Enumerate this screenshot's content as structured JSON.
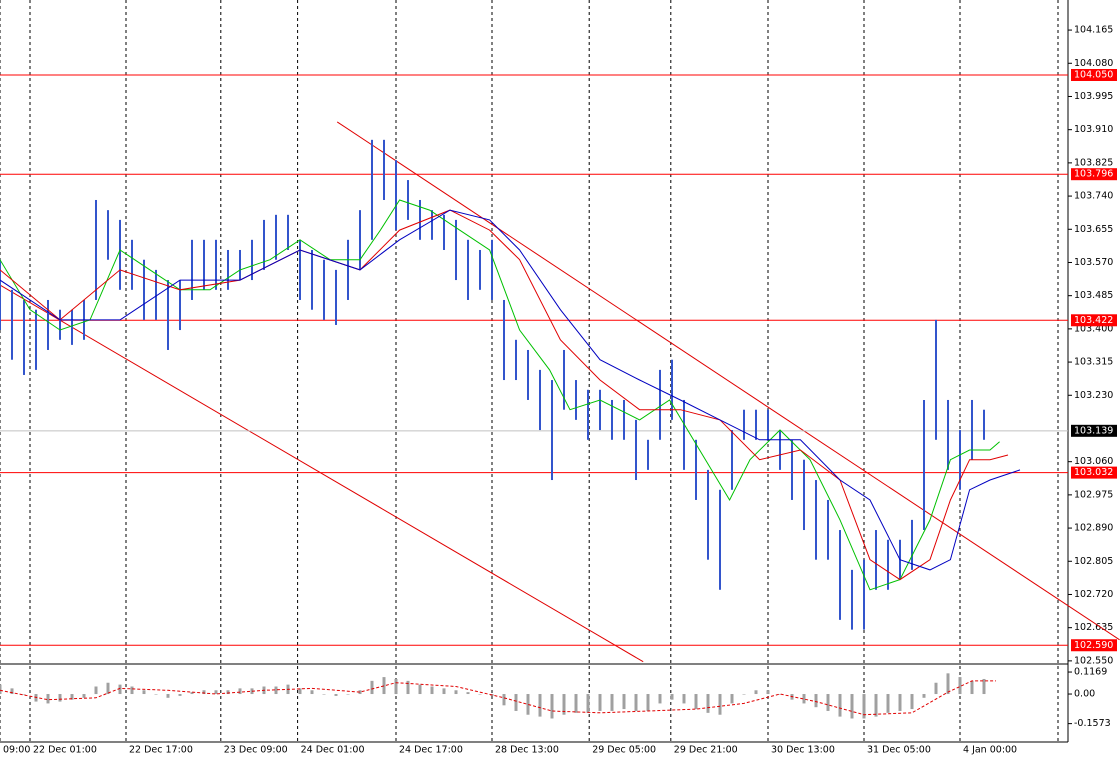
{
  "chart_data": [
    {
      "type": "hilo",
      "color": "#3355cc",
      "high": [
        103.577,
        103.5,
        103.474,
        103.449,
        103.474,
        103.449,
        103.449,
        103.474,
        103.73,
        103.704,
        103.679,
        103.628,
        103.577,
        103.551,
        103.525,
        103.525,
        103.628,
        103.628,
        103.628,
        103.602,
        103.602,
        103.628,
        103.679,
        103.692,
        103.692,
        103.628,
        103.602,
        103.577,
        103.551,
        103.628,
        103.704,
        103.884,
        103.884,
        103.832,
        103.781,
        103.73,
        103.704,
        103.692,
        103.679,
        103.628,
        103.602,
        103.628,
        103.474,
        103.372,
        103.346,
        103.295,
        103.269,
        103.346,
        103.269,
        103.244,
        103.244,
        103.218,
        103.218,
        103.167,
        103.116,
        103.295,
        103.321,
        103.218,
        103.116,
        103.039,
        102.988,
        103.141,
        103.193,
        103.193,
        103.193,
        103.141,
        103.116,
        103.065,
        103.013,
        102.962,
        102.885,
        102.783,
        102.809,
        102.885,
        102.86,
        102.86,
        102.911,
        103.218,
        103.423,
        103.218,
        103.141,
        103.218,
        103.193
      ],
      "low": [
        103.397,
        103.321,
        103.282,
        103.295,
        103.346,
        103.372,
        103.359,
        103.372,
        103.474,
        103.577,
        103.5,
        103.5,
        103.423,
        103.423,
        103.346,
        103.397,
        103.474,
        103.5,
        103.5,
        103.5,
        103.525,
        103.525,
        103.551,
        103.577,
        103.602,
        103.474,
        103.449,
        103.423,
        103.41,
        103.474,
        103.551,
        103.628,
        103.73,
        103.653,
        103.679,
        103.628,
        103.628,
        103.602,
        103.525,
        103.474,
        103.5,
        103.474,
        103.269,
        103.269,
        103.218,
        103.141,
        103.013,
        103.193,
        103.167,
        103.116,
        103.141,
        103.116,
        103.116,
        103.013,
        103.039,
        103.116,
        103.167,
        103.039,
        102.962,
        102.809,
        102.732,
        102.988,
        103.116,
        103.116,
        103.116,
        103.039,
        102.962,
        102.885,
        102.809,
        102.809,
        102.655,
        102.63,
        102.63,
        102.732,
        102.732,
        102.758,
        102.783,
        102.885,
        103.116,
        103.039,
        102.988,
        103.065,
        103.116
      ],
      "lines": [
        {
          "color": "#00c000",
          "x": [
            0,
            2.5,
            5,
            7.5,
            10,
            12.5,
            15,
            17.5,
            20,
            22.5,
            25,
            27.5,
            30,
            31.7,
            33.3,
            35.8,
            38.3,
            40.8,
            43.3,
            45.8,
            47.5,
            50,
            53.3,
            55.8,
            58.3,
            60.8,
            62.5,
            65,
            67.5,
            70,
            72.5,
            75,
            77.5,
            79.2,
            80.8,
            82.5,
            83.3
          ],
          "values": [
            103.577,
            103.449,
            103.397,
            103.423,
            103.602,
            103.551,
            103.5,
            103.5,
            103.551,
            103.577,
            103.628,
            103.577,
            103.577,
            103.653,
            103.73,
            103.704,
            103.653,
            103.602,
            103.397,
            103.295,
            103.193,
            103.218,
            103.167,
            103.218,
            103.09,
            102.962,
            103.065,
            103.141,
            103.065,
            102.911,
            102.732,
            102.758,
            102.911,
            103.065,
            103.09,
            103.09,
            103.111
          ]
        },
        {
          "color": "#e00000",
          "x": [
            0,
            5,
            10,
            15,
            20,
            25,
            30,
            33.3,
            37.5,
            40.8,
            43.3,
            46.7,
            50,
            53.3,
            56.7,
            60,
            63.3,
            66.7,
            70,
            72.5,
            75,
            77.5,
            79.2,
            80.8,
            82.5,
            84
          ],
          "values": [
            103.551,
            103.423,
            103.551,
            103.5,
            103.525,
            103.602,
            103.551,
            103.653,
            103.704,
            103.653,
            103.577,
            103.372,
            103.269,
            103.193,
            103.193,
            103.167,
            103.065,
            103.09,
            103.013,
            102.809,
            102.758,
            102.809,
            102.962,
            103.065,
            103.065,
            103.077
          ]
        },
        {
          "color": "#0000c0",
          "x": [
            0,
            5,
            10,
            15,
            20,
            25,
            30,
            33.3,
            37.5,
            40.8,
            43.3,
            46.7,
            50,
            53.3,
            56.7,
            60,
            63.3,
            66.7,
            70,
            72.5,
            75,
            77.5,
            79.2,
            80.8,
            82.5,
            85
          ],
          "values": [
            103.525,
            103.423,
            103.423,
            103.525,
            103.525,
            103.602,
            103.551,
            103.628,
            103.704,
            103.679,
            103.602,
            103.449,
            103.321,
            103.269,
            103.218,
            103.167,
            103.116,
            103.116,
            103.013,
            102.962,
            102.809,
            102.783,
            102.809,
            102.988,
            103.013,
            103.039
          ]
        }
      ],
      "trendlines": [
        {
          "color": "#e00000",
          "x": [
            28.1,
            93.3
          ],
          "values": [
            103.93,
            102.604
          ]
        },
        {
          "color": "#e00000",
          "x": [
            0,
            53.6
          ],
          "values": [
            103.512,
            102.548
          ]
        }
      ],
      "levels": {
        "color": "#ff0000",
        "values": [
          104.05,
          103.796,
          103.422,
          103.032,
          102.59
        ],
        "value_labels": [
          "104.050",
          "103.796",
          "103.422",
          "103.032",
          "102.590"
        ]
      },
      "current": {
        "value": 103.139,
        "color": "#c0c0c0"
      },
      "xlim": [
        0,
        89
      ],
      "xticks": [
        {
          "value": 0,
          "label": "09:00"
        },
        {
          "value": 2.5,
          "label": "22 Dec 01:00"
        },
        {
          "value": 10.5,
          "label": "22 Dec 17:00"
        },
        {
          "value": 18.4,
          "label": "23 Dec 09:00"
        },
        {
          "value": 24.8,
          "label": "24 Dec 01:00"
        },
        {
          "value": 33,
          "label": "24 Dec 17:00"
        },
        {
          "value": 41,
          "label": "28 Dec 13:00"
        },
        {
          "value": 49.1,
          "label": "29 Dec 05:00"
        },
        {
          "value": 55.9,
          "label": "29 Dec 21:00"
        },
        {
          "value": 64,
          "label": "30 Dec 13:00"
        },
        {
          "value": 72,
          "label": "31 Dec 05:00"
        },
        {
          "value": 80,
          "label": "4 Jan 00:00"
        }
      ],
      "ylim": [
        102.542,
        104.242
      ],
      "yticks": [
        104.165,
        {
          "value": 104.08,
          "label": "104.080"
        },
        103.995,
        {
          "value": 103.91,
          "label": "103.910"
        },
        103.825,
        {
          "value": 103.74,
          "label": "103.740"
        },
        103.655,
        {
          "value": 103.57,
          "label": "103.570"
        },
        103.485,
        {
          "value": 103.4,
          "label": "103.400"
        },
        103.315,
        {
          "value": 103.23,
          "label": "103.230"
        },
        {
          "value": 103.06,
          "label": "103.060"
        },
        102.975,
        {
          "value": 102.89,
          "label": "102.890"
        },
        102.805,
        {
          "value": 102.72,
          "label": "102.720"
        },
        102.635,
        {
          "value": 102.55,
          "label": "102.550"
        }
      ],
      "grid": true
    },
    {
      "type": "oscillator",
      "color": "#a0a0a0",
      "values": [
        0.05,
        0.03,
        0.0,
        -0.04,
        -0.05,
        -0.04,
        -0.03,
        -0.02,
        0.04,
        0.06,
        0.05,
        0.04,
        0.02,
        0.0,
        -0.02,
        -0.01,
        0.01,
        0.02,
        0.02,
        0.02,
        0.03,
        0.03,
        0.04,
        0.04,
        0.05,
        0.03,
        0.02,
        0.0,
        -0.01,
        0.0,
        0.02,
        0.07,
        0.09,
        0.08,
        0.07,
        0.05,
        0.04,
        0.03,
        0.02,
        0.01,
        0.0,
        -0.01,
        -0.06,
        -0.09,
        -0.11,
        -0.12,
        -0.13,
        -0.11,
        -0.1,
        -0.1,
        -0.09,
        -0.09,
        -0.08,
        -0.09,
        -0.09,
        -0.05,
        -0.03,
        -0.05,
        -0.08,
        -0.1,
        -0.11,
        -0.05,
        0.0,
        0.02,
        0.02,
        0.0,
        -0.03,
        -0.05,
        -0.07,
        -0.09,
        -0.12,
        -0.13,
        -0.13,
        -0.12,
        -0.1,
        -0.09,
        -0.08,
        -0.02,
        0.06,
        0.11,
        0.09,
        0.07,
        0.08
      ],
      "signal": {
        "color": "#e00000",
        "x": [
          0,
          4,
          8,
          10,
          14,
          18,
          22,
          26,
          30,
          33,
          38,
          42,
          46,
          50,
          54,
          58,
          62,
          65,
          68,
          72,
          76,
          79,
          81,
          83
        ],
        "values": [
          0.02,
          -0.03,
          -0.02,
          0.03,
          0.02,
          0.0,
          0.02,
          0.03,
          0.01,
          0.06,
          0.04,
          -0.02,
          -0.09,
          -0.1,
          -0.09,
          -0.08,
          -0.05,
          0.0,
          -0.04,
          -0.11,
          -0.1,
          0.01,
          0.07,
          0.07
        ]
      },
      "xlim": [
        0,
        89
      ],
      "ylim": [
        -0.255,
        0.149
      ],
      "yticks": [
        0.1169,
        {
          "value": 0,
          "label": "0.00"
        },
        -0.1573
      ]
    }
  ]
}
